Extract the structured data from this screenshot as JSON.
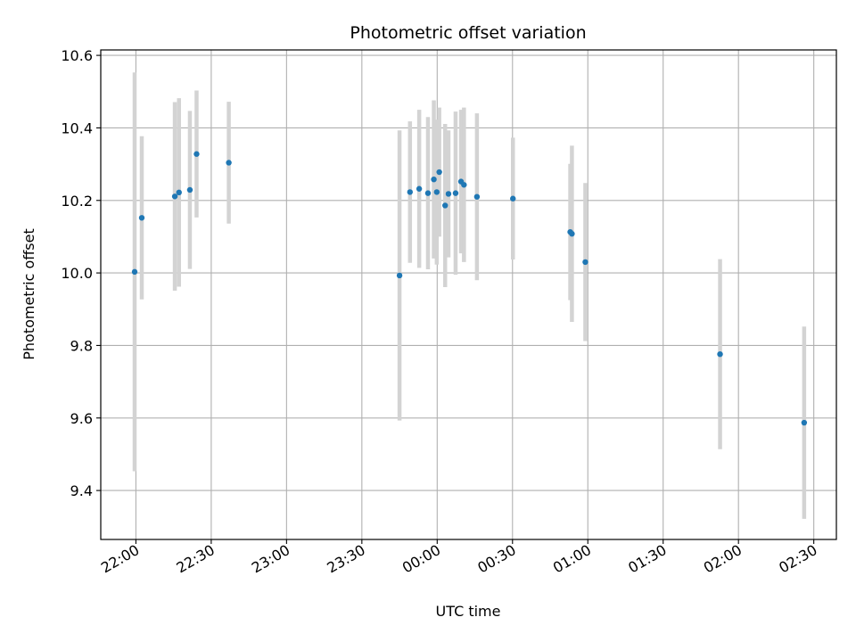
{
  "chart_data": {
    "type": "scatter",
    "title": "Photometric offset variation",
    "xlabel": "UTC time",
    "ylabel": "Photometric offset",
    "grid": true,
    "x_axis_kind": "time",
    "x_start_date": "2023-01-01",
    "xlim": [
      "2023-01-01T21:46",
      "2023-01-02T02:39"
    ],
    "ylim": [
      9.265,
      10.615
    ],
    "x_ticks": [
      {
        "t": "2023-01-01T22:00",
        "label": "22:00"
      },
      {
        "t": "2023-01-01T22:30",
        "label": "22:30"
      },
      {
        "t": "2023-01-01T23:00",
        "label": "23:00"
      },
      {
        "t": "2023-01-01T23:30",
        "label": "23:30"
      },
      {
        "t": "2023-01-02T00:00",
        "label": "00:00"
      },
      {
        "t": "2023-01-02T00:30",
        "label": "00:30"
      },
      {
        "t": "2023-01-02T01:00",
        "label": "01:00"
      },
      {
        "t": "2023-01-02T01:30",
        "label": "01:30"
      },
      {
        "t": "2023-01-02T02:00",
        "label": "02:00"
      },
      {
        "t": "2023-01-02T02:30",
        "label": "02:30"
      }
    ],
    "y_ticks": [
      {
        "v": 9.4,
        "label": "9.4"
      },
      {
        "v": 9.6,
        "label": "9.6"
      },
      {
        "v": 9.8,
        "label": "9.8"
      },
      {
        "v": 10.0,
        "label": "10.0"
      },
      {
        "v": 10.2,
        "label": "10.2"
      },
      {
        "v": 10.4,
        "label": "10.4"
      },
      {
        "v": 10.6,
        "label": "10.6"
      }
    ],
    "colors": {
      "point": "#1f77b4",
      "errorbar": "#d3d3d3",
      "grid": "#b0b0b0",
      "axes": "#000000"
    },
    "series": [
      {
        "points": [
          {
            "t": "2023-01-01T21:59:30",
            "y": 10.003,
            "err": 0.55
          },
          {
            "t": "2023-01-01T22:02:20",
            "y": 10.152,
            "err": 0.225
          },
          {
            "t": "2023-01-01T22:15:30",
            "y": 10.211,
            "err": 0.26
          },
          {
            "t": "2023-01-01T22:17:10",
            "y": 10.222,
            "err": 0.26
          },
          {
            "t": "2023-01-01T22:21:30",
            "y": 10.229,
            "err": 0.218
          },
          {
            "t": "2023-01-01T22:24:10",
            "y": 10.328,
            "err": 0.175
          },
          {
            "t": "2023-01-01T22:37:00",
            "y": 10.304,
            "err": 0.168
          },
          {
            "t": "2023-01-01T23:45:00",
            "y": 9.993,
            "err": 0.4
          },
          {
            "t": "2023-01-01T23:49:10",
            "y": 10.223,
            "err": 0.195
          },
          {
            "t": "2023-01-01T23:52:50",
            "y": 10.232,
            "err": 0.218
          },
          {
            "t": "2023-01-01T23:56:20",
            "y": 10.22,
            "err": 0.21
          },
          {
            "t": "2023-01-01T23:58:40",
            "y": 10.258,
            "err": 0.218
          },
          {
            "t": "2023-01-01T23:59:50",
            "y": 10.223,
            "err": 0.2
          },
          {
            "t": "2023-01-02T00:00:50",
            "y": 10.278,
            "err": 0.178
          },
          {
            "t": "2023-01-02T00:03:10",
            "y": 10.186,
            "err": 0.225
          },
          {
            "t": "2023-01-02T00:04:30",
            "y": 10.218,
            "err": 0.175
          },
          {
            "t": "2023-01-02T00:07:20",
            "y": 10.22,
            "err": 0.225
          },
          {
            "t": "2023-01-02T00:09:30",
            "y": 10.252,
            "err": 0.198
          },
          {
            "t": "2023-01-02T00:10:40",
            "y": 10.243,
            "err": 0.213
          },
          {
            "t": "2023-01-02T00:15:50",
            "y": 10.21,
            "err": 0.23
          },
          {
            "t": "2023-01-02T00:30:10",
            "y": 10.205,
            "err": 0.168
          },
          {
            "t": "2023-01-02T00:53:00",
            "y": 10.113,
            "err": 0.188
          },
          {
            "t": "2023-01-02T00:53:40",
            "y": 10.108,
            "err": 0.243
          },
          {
            "t": "2023-01-02T00:59:00",
            "y": 10.03,
            "err": 0.218
          },
          {
            "t": "2023-01-02T01:52:40",
            "y": 9.776,
            "err": 0.262
          },
          {
            "t": "2023-01-02T02:26:10",
            "y": 9.587,
            "err": 0.265
          }
        ]
      }
    ]
  }
}
